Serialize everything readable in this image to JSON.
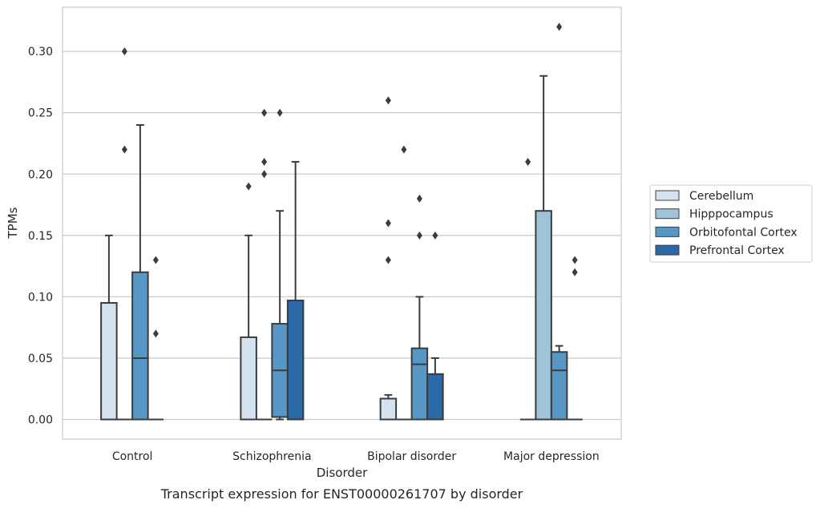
{
  "chart_data": {
    "type": "box",
    "title": "",
    "caption": "Transcript expression for ENST00000261707 by disorder",
    "xlabel": "Disorder",
    "ylabel": "TPMs",
    "ylim": [
      -0.016,
      0.336
    ],
    "yticks": [
      "0.00",
      "0.05",
      "0.10",
      "0.15",
      "0.20",
      "0.25",
      "0.30"
    ],
    "grid": "horizontal",
    "legend_position": "right",
    "categories": [
      "Control",
      "Schizophrenia",
      "Bipolar disorder",
      "Major depression"
    ],
    "series": [
      {
        "name": "Cerebellum",
        "color": "#d5e2f0",
        "boxes": [
          {
            "q1": 0,
            "median": 0,
            "q3": 0.095,
            "whisker_low": 0,
            "whisker_high": 0.15,
            "outliers": []
          },
          {
            "q1": 0,
            "median": 0,
            "q3": 0.067,
            "whisker_low": 0,
            "whisker_high": 0.15,
            "outliers": [
              0.19
            ]
          },
          {
            "q1": 0,
            "median": 0,
            "q3": 0.017,
            "whisker_low": 0,
            "whisker_high": 0.02,
            "outliers": [
              0.13,
              0.16,
              0.26
            ]
          },
          {
            "q1": 0,
            "median": 0,
            "q3": 0,
            "whisker_low": 0,
            "whisker_high": 0,
            "outliers": [
              0.21
            ]
          }
        ]
      },
      {
        "name": "Hipppocampus",
        "color": "#9ec4da",
        "boxes": [
          {
            "q1": 0,
            "median": 0,
            "q3": 0,
            "whisker_low": 0,
            "whisker_high": 0,
            "outliers": [
              0.22,
              0.3
            ]
          },
          {
            "q1": 0,
            "median": 0,
            "q3": 0,
            "whisker_low": 0,
            "whisker_high": 0,
            "outliers": [
              0.2,
              0.21,
              0.25
            ]
          },
          {
            "q1": 0,
            "median": 0,
            "q3": 0,
            "whisker_low": 0,
            "whisker_high": 0,
            "outliers": [
              0.22
            ]
          },
          {
            "q1": 0,
            "median": 0,
            "q3": 0.17,
            "whisker_low": 0,
            "whisker_high": 0.28,
            "outliers": []
          }
        ]
      },
      {
        "name": "Orbitofontal Cortex",
        "color": "#5797c5",
        "boxes": [
          {
            "q1": 0,
            "median": 0.05,
            "q3": 0.12,
            "whisker_low": 0,
            "whisker_high": 0.24,
            "outliers": []
          },
          {
            "q1": 0.002,
            "median": 0.04,
            "q3": 0.078,
            "whisker_low": 0,
            "whisker_high": 0.17,
            "outliers": [
              0.25
            ]
          },
          {
            "q1": 0,
            "median": 0.045,
            "q3": 0.058,
            "whisker_low": 0,
            "whisker_high": 0.1,
            "outliers": [
              0.15,
              0.18
            ]
          },
          {
            "q1": 0,
            "median": 0.04,
            "q3": 0.055,
            "whisker_low": 0,
            "whisker_high": 0.06,
            "outliers": [
              0.32
            ]
          }
        ]
      },
      {
        "name": "Prefrontal Cortex",
        "color": "#2a68a6",
        "boxes": [
          {
            "q1": 0,
            "median": 0,
            "q3": 0,
            "whisker_low": 0,
            "whisker_high": 0,
            "outliers": [
              0.07,
              0.13
            ]
          },
          {
            "q1": 0,
            "median": 0,
            "q3": 0.097,
            "whisker_low": 0,
            "whisker_high": 0.21,
            "outliers": []
          },
          {
            "q1": 0,
            "median": 0,
            "q3": 0.037,
            "whisker_low": 0,
            "whisker_high": 0.05,
            "outliers": [
              0.15
            ]
          },
          {
            "q1": 0,
            "median": 0,
            "q3": 0,
            "whisker_low": 0,
            "whisker_high": 0,
            "outliers": [
              0.12,
              0.13
            ]
          }
        ]
      }
    ]
  }
}
